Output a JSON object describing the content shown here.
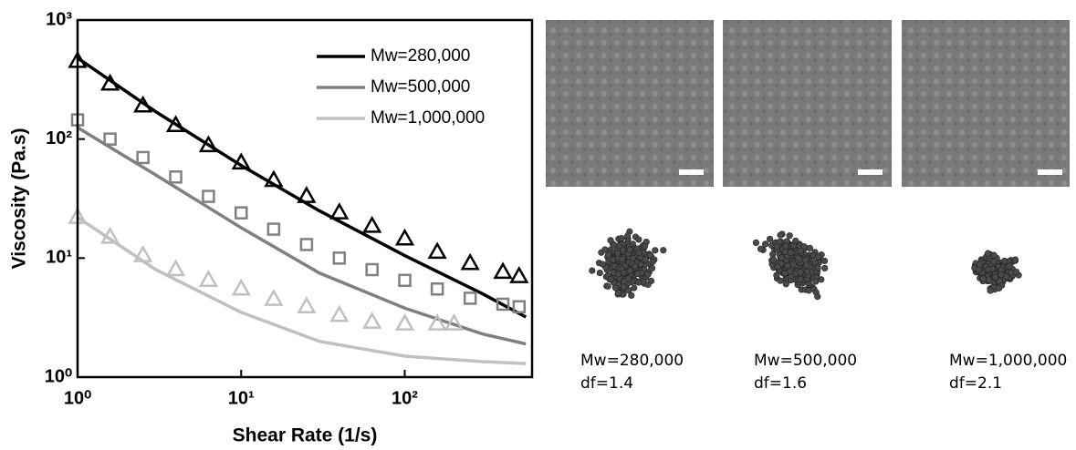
{
  "chart_data": {
    "type": "scatter-fit",
    "xlabel": "Shear Rate (1/s)",
    "ylabel": "Viscosity (Pa.s)",
    "log_x": true,
    "log_y": true,
    "xlim": [
      1,
      600
    ],
    "ylim": [
      1,
      1000
    ],
    "xticks": [
      {
        "value": 1,
        "label": "10⁰"
      },
      {
        "value": 10,
        "label": "10¹"
      },
      {
        "value": 100,
        "label": "10²"
      }
    ],
    "yticks": [
      {
        "value": 1,
        "label": "10⁰"
      },
      {
        "value": 10,
        "label": "10¹"
      },
      {
        "value": 100,
        "label": "10²"
      },
      {
        "value": 1000,
        "label": "10³"
      }
    ],
    "legend": "top-right",
    "series": [
      {
        "name": "Mw=280,000",
        "color": "#000000",
        "marker": "triangle",
        "x": [
          1,
          1.58,
          2.51,
          3.98,
          6.31,
          10,
          15.8,
          25.1,
          39.8,
          63.1,
          100,
          158,
          251,
          398,
          500
        ],
        "values": [
          450,
          290,
          190,
          130,
          88,
          63,
          45,
          33,
          24,
          18.5,
          14.5,
          11.2,
          9,
          7.6,
          7
        ],
        "fit": {
          "x": [
            1,
            3,
            10,
            30,
            100,
            300,
            550
          ],
          "values": [
            480,
            170,
            60,
            25,
            10.5,
            5,
            3.2
          ]
        }
      },
      {
        "name": "Mw=500,000",
        "color": "#808080",
        "marker": "square",
        "x": [
          1,
          1.58,
          2.51,
          3.98,
          6.31,
          10,
          15.8,
          25.1,
          39.8,
          63.1,
          100,
          158,
          251,
          398,
          500
        ],
        "values": [
          145,
          100,
          70,
          48,
          33,
          24,
          17.5,
          13,
          10,
          8,
          6.5,
          5.5,
          4.6,
          4.1,
          3.9
        ],
        "fit": {
          "x": [
            1,
            3,
            10,
            30,
            100,
            300,
            550
          ],
          "values": [
            125,
            50,
            18,
            7.5,
            3.8,
            2.3,
            1.9
          ]
        }
      },
      {
        "name": "Mw=1,000,000",
        "color": "#c0c0c0",
        "marker": "triangle",
        "x": [
          1,
          1.58,
          2.51,
          3.98,
          6.31,
          10,
          15.8,
          25.1,
          39.8,
          63.1,
          100,
          158,
          200
        ],
        "values": [
          22,
          15,
          10.5,
          8,
          6.5,
          5.5,
          4.5,
          3.9,
          3.3,
          2.9,
          2.8,
          2.8,
          2.8
        ],
        "fit": {
          "x": [
            1,
            3,
            10,
            30,
            100,
            300,
            550
          ],
          "values": [
            22,
            8,
            3.5,
            2.0,
            1.5,
            1.35,
            1.3
          ]
        }
      }
    ]
  },
  "panels": [
    {
      "caption": "Mw=280,000",
      "dimension": "df=1.4"
    },
    {
      "caption": "Mw=500,000",
      "dimension": "df=1.6"
    },
    {
      "caption": "Mw=1,000,000",
      "dimension": "df=2.1"
    }
  ]
}
